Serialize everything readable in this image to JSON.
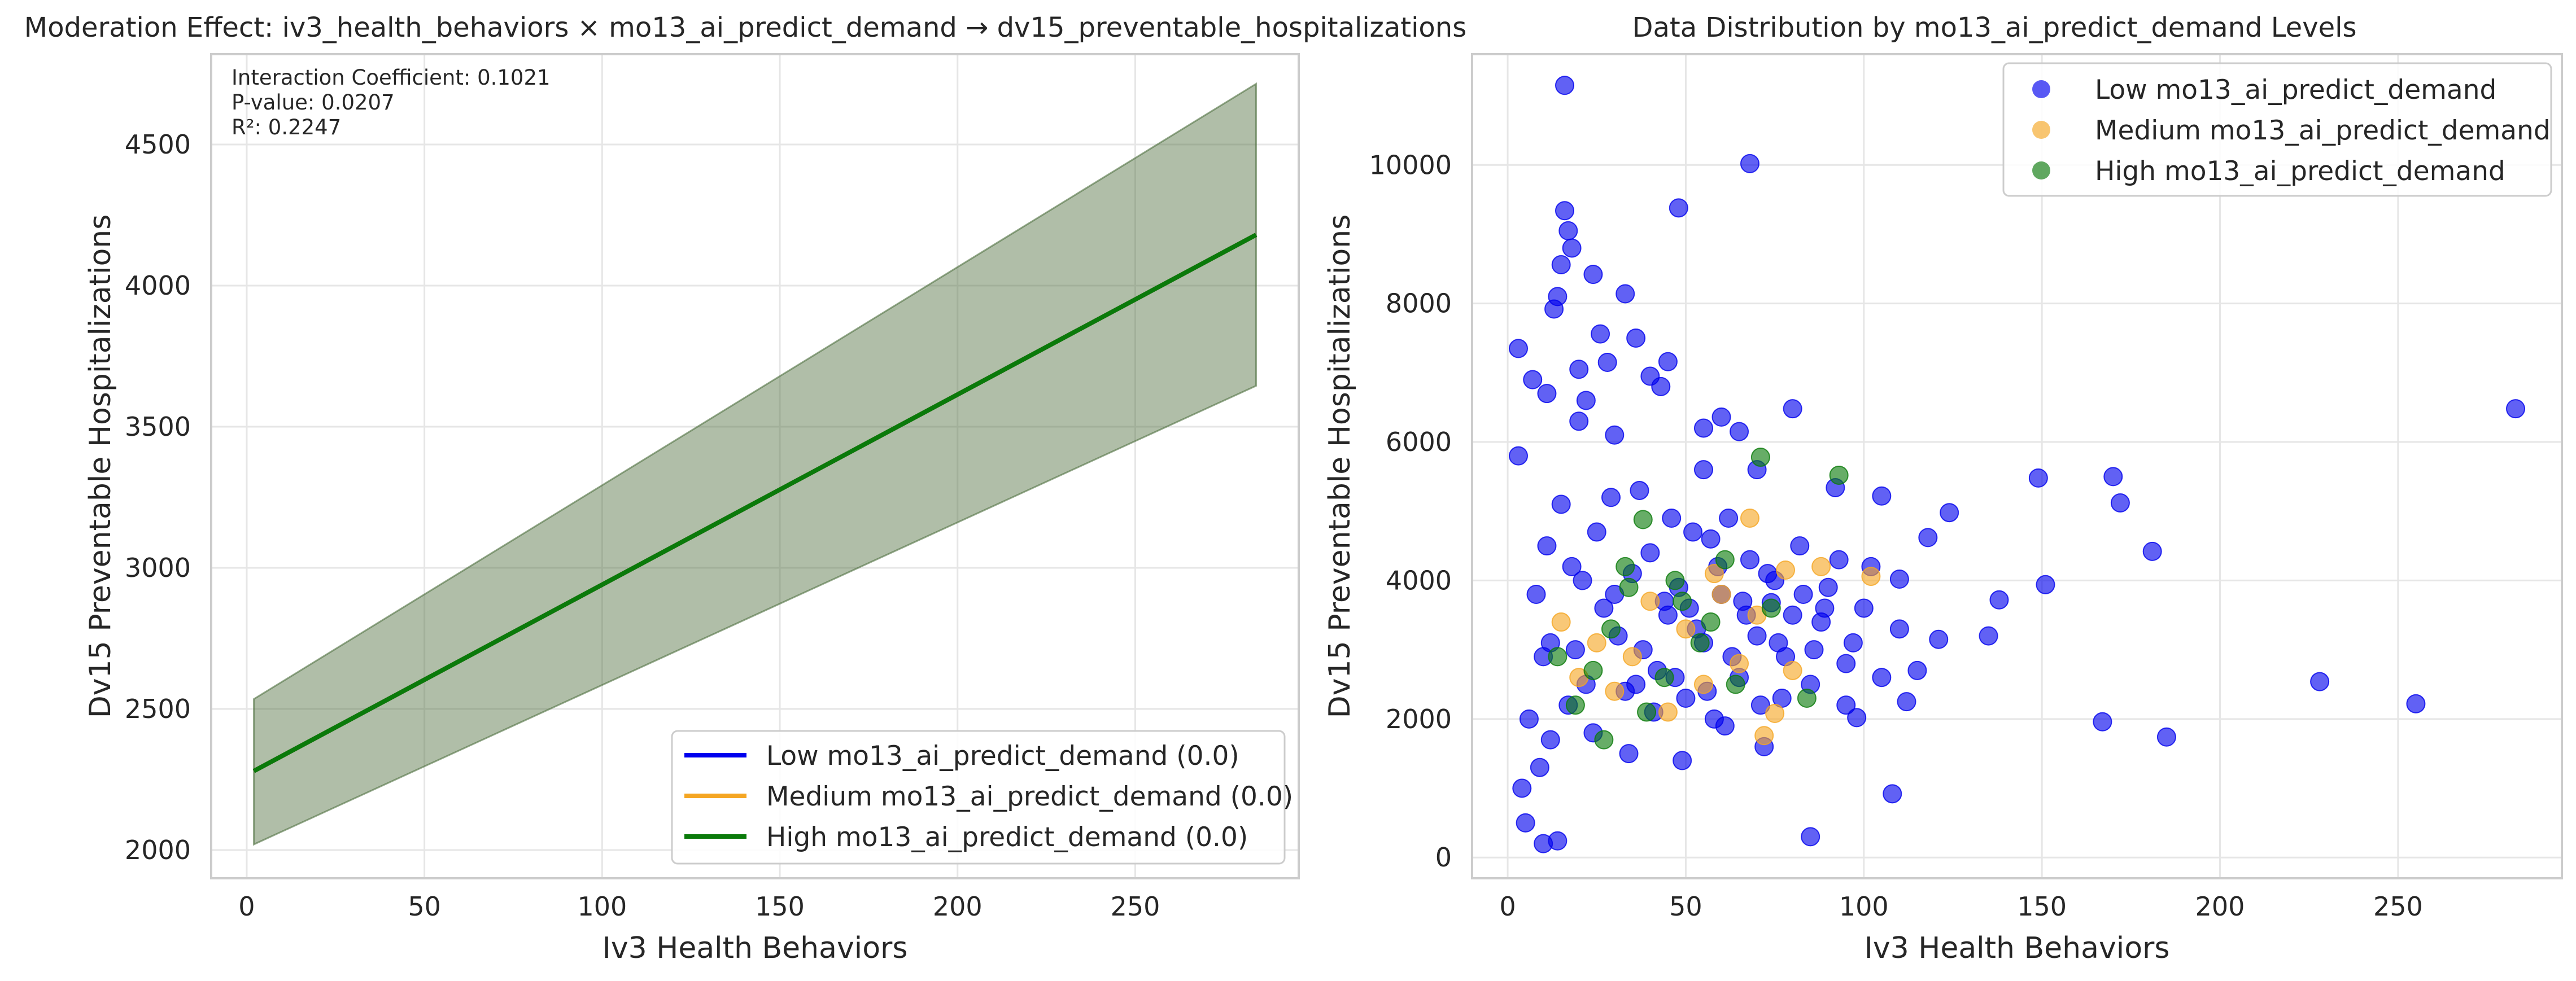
{
  "chart_data": [
    {
      "type": "line",
      "title": "Moderation Effect: iv3_health_behaviors × mo13_ai_predict_demand → dv15_preventable_hospitalizations",
      "xlabel": "Iv3 Health Behaviors",
      "ylabel": "Dv15 Preventable Hospitalizations",
      "xlim": [
        -10,
        296
      ],
      "ylim": [
        1900,
        4820
      ],
      "x_ticks": [
        0,
        50,
        100,
        150,
        200,
        250
      ],
      "y_ticks": [
        2000,
        2500,
        3000,
        3500,
        4000,
        4500
      ],
      "grid": true,
      "legend_position": "bottom-right",
      "annotation": [
        "Interaction Coefficient: 0.1021",
        "P-value: 0.0207",
        "R²: 0.2247"
      ],
      "series": [
        {
          "name": "Low mo13_ai_predict_demand (0.0)",
          "color": "#0000ee",
          "x": [
            2,
            284
          ],
          "y": [
            2280,
            4180
          ]
        },
        {
          "name": "Medium mo13_ai_predict_demand (0.0)",
          "color": "#f5a623",
          "x": [
            2,
            284
          ],
          "y": [
            2280,
            4180
          ]
        },
        {
          "name": "High mo13_ai_predict_demand (0.0)",
          "color": "#0a7a0a",
          "x": [
            2,
            284
          ],
          "y": [
            2280,
            4180
          ]
        }
      ],
      "confidence_band": {
        "color": "#4f6f3f",
        "x": [
          2,
          284
        ],
        "lower": [
          2020,
          3645
        ],
        "upper": [
          2535,
          4715
        ]
      }
    },
    {
      "type": "scatter",
      "title": "Data Distribution by mo13_ai_predict_demand Levels",
      "xlabel": "Iv3 Health Behaviors",
      "ylabel": "Dv15 Preventable Hospitalizations",
      "xlim": [
        -10,
        296
      ],
      "ylim": [
        -300,
        11600
      ],
      "x_ticks": [
        0,
        50,
        100,
        150,
        200,
        250
      ],
      "y_ticks": [
        0,
        2000,
        4000,
        6000,
        8000,
        10000
      ],
      "grid": true,
      "legend_position": "top-right",
      "series": [
        {
          "name": "Low mo13_ai_predict_demand",
          "color": "#0000ee",
          "points": [
            [
              283,
              6480
            ],
            [
              255,
              2220
            ],
            [
              228,
              2540
            ],
            [
              185,
              1740
            ],
            [
              181,
              4420
            ],
            [
              172,
              5120
            ],
            [
              170,
              5500
            ],
            [
              167,
              1960
            ],
            [
              151,
              3940
            ],
            [
              149,
              5480
            ],
            [
              138,
              3720
            ],
            [
              135,
              3200
            ],
            [
              124,
              4980
            ],
            [
              121,
              3150
            ],
            [
              118,
              4620
            ],
            [
              112,
              2250
            ],
            [
              110,
              4020
            ],
            [
              108,
              920
            ],
            [
              105,
              5220
            ],
            [
              98,
              2020
            ],
            [
              95,
              2200
            ],
            [
              92,
              5340
            ],
            [
              85,
              300
            ],
            [
              80,
              6480
            ],
            [
              74,
              3680
            ],
            [
              70,
              5600
            ],
            [
              68,
              10020
            ],
            [
              65,
              6150
            ],
            [
              60,
              6360
            ],
            [
              55,
              5600
            ],
            [
              48,
              9380
            ],
            [
              45,
              7160
            ],
            [
              43,
              6800
            ],
            [
              40,
              6950
            ],
            [
              36,
              7500
            ],
            [
              33,
              8140
            ],
            [
              28,
              7150
            ],
            [
              26,
              7560
            ],
            [
              24,
              8420
            ],
            [
              22,
              6600
            ],
            [
              20,
              7050
            ],
            [
              18,
              8800
            ],
            [
              17,
              9050
            ],
            [
              16,
              9340
            ],
            [
              16,
              11150
            ],
            [
              15,
              8560
            ],
            [
              14,
              8100
            ],
            [
              13,
              7920
            ],
            [
              11,
              6700
            ],
            [
              7,
              6900
            ],
            [
              3,
              7350
            ],
            [
              3,
              5800
            ],
            [
              20,
              6300
            ],
            [
              30,
              6100
            ],
            [
              55,
              6200
            ],
            [
              6,
              2000
            ],
            [
              4,
              1000
            ],
            [
              5,
              500
            ],
            [
              10,
              200
            ],
            [
              14,
              240
            ],
            [
              9,
              1300
            ],
            [
              12,
              3100
            ],
            [
              18,
              4200
            ],
            [
              22,
              2500
            ],
            [
              27,
              3600
            ],
            [
              30,
              3800
            ],
            [
              33,
              2400
            ],
            [
              35,
              4100
            ],
            [
              38,
              3000
            ],
            [
              40,
              4400
            ],
            [
              42,
              2700
            ],
            [
              45,
              3500
            ],
            [
              48,
              3900
            ],
            [
              50,
              2300
            ],
            [
              52,
              4700
            ],
            [
              55,
              3100
            ],
            [
              58,
              2000
            ],
            [
              60,
              3800
            ],
            [
              62,
              4900
            ],
            [
              65,
              2600
            ],
            [
              68,
              4300
            ],
            [
              70,
              3200
            ],
            [
              72,
              1600
            ],
            [
              75,
              4000
            ],
            [
              78,
              2900
            ],
            [
              80,
              3500
            ],
            [
              82,
              4500
            ],
            [
              85,
              2500
            ],
            [
              88,
              3400
            ],
            [
              90,
              3900
            ],
            [
              95,
              2800
            ],
            [
              100,
              3600
            ],
            [
              102,
              4200
            ],
            [
              105,
              2600
            ],
            [
              110,
              3300
            ],
            [
              115,
              2700
            ],
            [
              8,
              3800
            ],
            [
              11,
              4500
            ],
            [
              15,
              5100
            ],
            [
              19,
              3000
            ],
            [
              24,
              1800
            ],
            [
              29,
              5200
            ],
            [
              34,
              1500
            ],
            [
              37,
              5300
            ],
            [
              41,
              2100
            ],
            [
              46,
              4900
            ],
            [
              49,
              1400
            ],
            [
              53,
              3300
            ],
            [
              57,
              4600
            ],
            [
              61,
              1900
            ],
            [
              66,
              3700
            ],
            [
              71,
              2200
            ],
            [
              76,
              3100
            ],
            [
              86,
              3000
            ],
            [
              10,
              2900
            ],
            [
              12,
              1700
            ],
            [
              17,
              2200
            ],
            [
              21,
              4000
            ],
            [
              25,
              4700
            ],
            [
              31,
              3200
            ],
            [
              36,
              2500
            ],
            [
              44,
              3700
            ],
            [
              47,
              2600
            ],
            [
              51,
              3600
            ],
            [
              56,
              2400
            ],
            [
              59,
              4200
            ],
            [
              63,
              2900
            ],
            [
              67,
              3500
            ],
            [
              73,
              4100
            ],
            [
              77,
              2300
            ],
            [
              83,
              3800
            ],
            [
              89,
              3600
            ],
            [
              93,
              4300
            ],
            [
              97,
              3100
            ]
          ]
        },
        {
          "name": "Medium mo13_ai_predict_demand",
          "color": "#f5a623",
          "points": [
            [
              68,
              4900
            ],
            [
              72,
              1760
            ],
            [
              75,
              2080
            ],
            [
              78,
              4150
            ],
            [
              88,
              4200
            ],
            [
              102,
              4060
            ],
            [
              60,
              3800
            ],
            [
              55,
              2500
            ],
            [
              50,
              3300
            ],
            [
              45,
              2100
            ],
            [
              40,
              3700
            ],
            [
              35,
              2900
            ],
            [
              30,
              2400
            ],
            [
              25,
              3100
            ],
            [
              20,
              2600
            ],
            [
              15,
              3400
            ],
            [
              65,
              2800
            ],
            [
              70,
              3500
            ],
            [
              80,
              2700
            ],
            [
              58,
              4100
            ]
          ]
        },
        {
          "name": "High mo13_ai_predict_demand",
          "color": "#0a7a0a",
          "points": [
            [
              71,
              5780
            ],
            [
              93,
              5520
            ],
            [
              38,
              4880
            ],
            [
              61,
              4300
            ],
            [
              49,
              3700
            ],
            [
              34,
              3900
            ],
            [
              29,
              3300
            ],
            [
              24,
              2700
            ],
            [
              19,
              2200
            ],
            [
              14,
              2900
            ],
            [
              44,
              2600
            ],
            [
              54,
              3100
            ],
            [
              64,
              2500
            ],
            [
              74,
              3600
            ],
            [
              84,
              2300
            ],
            [
              39,
              2100
            ],
            [
              27,
              1700
            ],
            [
              33,
              4200
            ],
            [
              47,
              4000
            ],
            [
              57,
              3400
            ]
          ]
        }
      ]
    }
  ]
}
